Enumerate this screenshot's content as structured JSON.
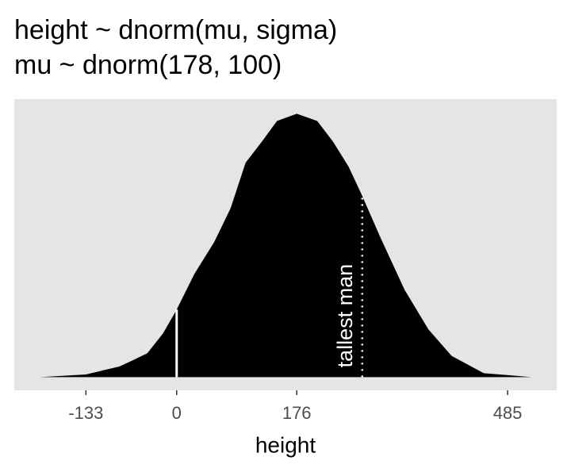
{
  "chart_data": {
    "type": "area",
    "title": "height ~ dnorm(mu, sigma)",
    "subtitle": "mu ~ dnorm(178, 100)",
    "x_label": "height",
    "x": [
      -200,
      -133,
      -84,
      -67,
      -43,
      -20,
      0,
      26,
      55,
      79,
      101,
      125,
      147,
      176,
      206,
      229,
      252,
      271,
      299,
      334,
      369,
      403,
      450,
      520
    ],
    "series": [
      {
        "color": "#000000",
        "values": [
          0.0,
          4e-05,
          0.00016,
          0.00024,
          0.00036,
          0.00066,
          0.00102,
          0.00156,
          0.00204,
          0.00255,
          0.00324,
          0.00356,
          0.00387,
          0.00398,
          0.00387,
          0.00356,
          0.00318,
          0.00276,
          0.0021,
          0.00132,
          0.00072,
          0.00032,
          6e-05,
          0.0
        ]
      }
    ],
    "xlim": [
      -238,
      557
    ],
    "ylim": [
      -0.0002,
      0.0042
    ],
    "xticks": [
      -133,
      0,
      176,
      485
    ],
    "grid": false,
    "annotations": [
      {
        "x": 0,
        "style": "solid"
      },
      {
        "x": 272,
        "style": "dotted",
        "label": "tallest man"
      }
    ]
  }
}
